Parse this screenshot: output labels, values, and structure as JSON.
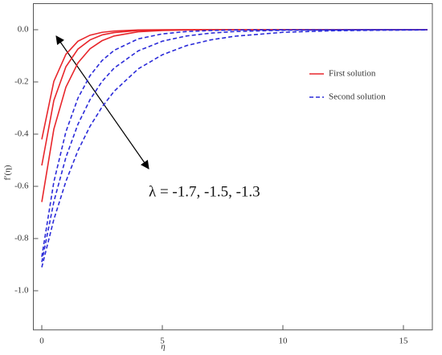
{
  "chart_data": {
    "type": "line",
    "x_label": "η",
    "y_label": "f′(η)",
    "annotation": "λ = -1.7, -1.5, -1.3",
    "x": [
      0,
      0.5,
      1,
      1.5,
      2,
      2.5,
      3,
      4,
      5,
      6,
      7,
      8,
      10,
      12,
      14,
      16
    ],
    "series": [
      {
        "name": "First solution",
        "color": "#e8262b",
        "dashed": false,
        "values": [
          -0.42,
          -0.198,
          -0.094,
          -0.044,
          -0.021,
          -0.01,
          -0.005,
          -0.001,
          0,
          0,
          0,
          0,
          0,
          0,
          0,
          0
        ]
      },
      {
        "name": null,
        "color": "#e8262b",
        "dashed": false,
        "values": [
          -0.52,
          -0.271,
          -0.142,
          -0.074,
          -0.039,
          -0.02,
          -0.011,
          -0.003,
          -0.001,
          0,
          0,
          0,
          0,
          0,
          0,
          0
        ]
      },
      {
        "name": null,
        "color": "#e8262b",
        "dashed": false,
        "values": [
          -0.66,
          -0.381,
          -0.22,
          -0.127,
          -0.073,
          -0.042,
          -0.024,
          -0.008,
          -0.003,
          -0.001,
          0,
          0,
          0,
          0,
          0,
          0
        ]
      },
      {
        "name": "Second solution",
        "color": "#2b2bd9",
        "dashed": true,
        "values": [
          -0.87,
          -0.583,
          -0.391,
          -0.262,
          -0.176,
          -0.118,
          -0.079,
          -0.035,
          -0.016,
          -0.007,
          -0.003,
          -0.001,
          0,
          0,
          0,
          0
        ]
      },
      {
        "name": null,
        "color": "#2b2bd9",
        "dashed": true,
        "values": [
          -0.89,
          -0.659,
          -0.489,
          -0.362,
          -0.268,
          -0.198,
          -0.147,
          -0.081,
          -0.044,
          -0.024,
          -0.013,
          -0.007,
          -0.002,
          -0.001,
          0,
          0
        ]
      },
      {
        "name": null,
        "color": "#2b2bd9",
        "dashed": true,
        "values": [
          -0.91,
          -0.727,
          -0.581,
          -0.463,
          -0.37,
          -0.296,
          -0.236,
          -0.15,
          -0.096,
          -0.061,
          -0.039,
          -0.025,
          -0.01,
          -0.004,
          -0.002,
          -0.001
        ]
      }
    ],
    "xlim": [
      -0.35,
      16.2
    ],
    "ylim": [
      -1.15,
      0.1
    ],
    "xticks": [
      0,
      5,
      10,
      15
    ],
    "yticks": [
      {
        "value": -1.0,
        "label": "-1.0"
      },
      -0.8,
      -0.6,
      -0.4,
      -0.2,
      {
        "value": 0,
        "label": "0.0"
      }
    ],
    "legend": "right"
  }
}
